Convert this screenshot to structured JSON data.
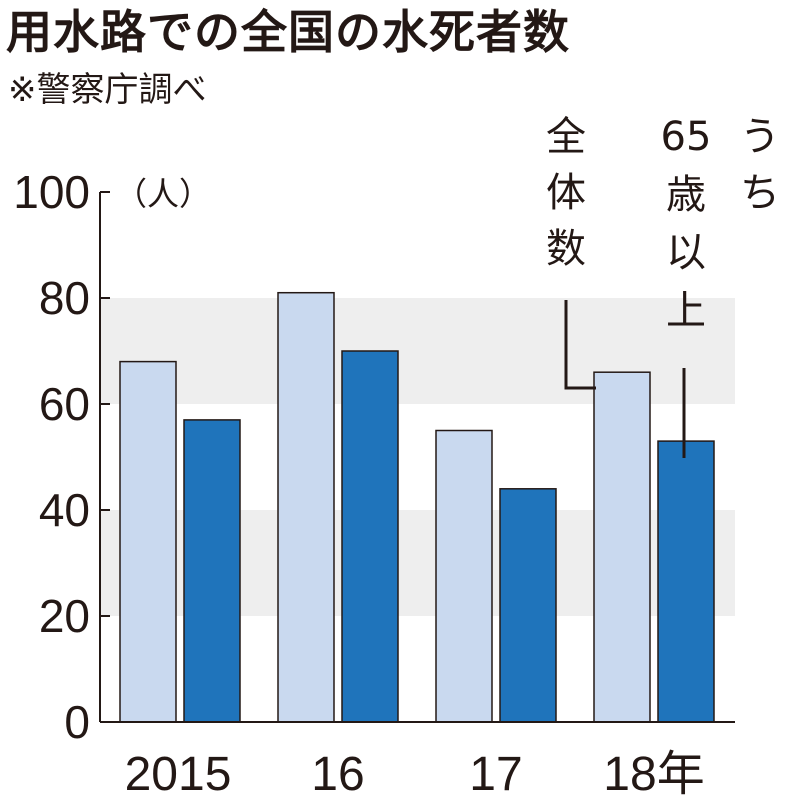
{
  "title": "用水路での全国の水死者数",
  "source": "※警察庁調べ",
  "chart_data": {
    "type": "bar",
    "categories": [
      "2015",
      "16",
      "17",
      "18年"
    ],
    "series": [
      {
        "name": "全体数",
        "values": [
          68,
          81,
          55,
          66
        ],
        "color": "#c9d9ef"
      },
      {
        "name": "うち65歳以上",
        "values": [
          57,
          70,
          44,
          53
        ],
        "color": "#1f74bb"
      }
    ],
    "y_tick_labels": [
      "0",
      "20",
      "40",
      "60",
      "80",
      "100"
    ],
    "unit": "（人）",
    "ylim": [
      0,
      100
    ],
    "background_bands": [
      [
        20,
        40
      ],
      [
        60,
        80
      ]
    ],
    "band_color": "#eeeeee",
    "legend_placement": "top-right, vertical labels with leader lines"
  }
}
